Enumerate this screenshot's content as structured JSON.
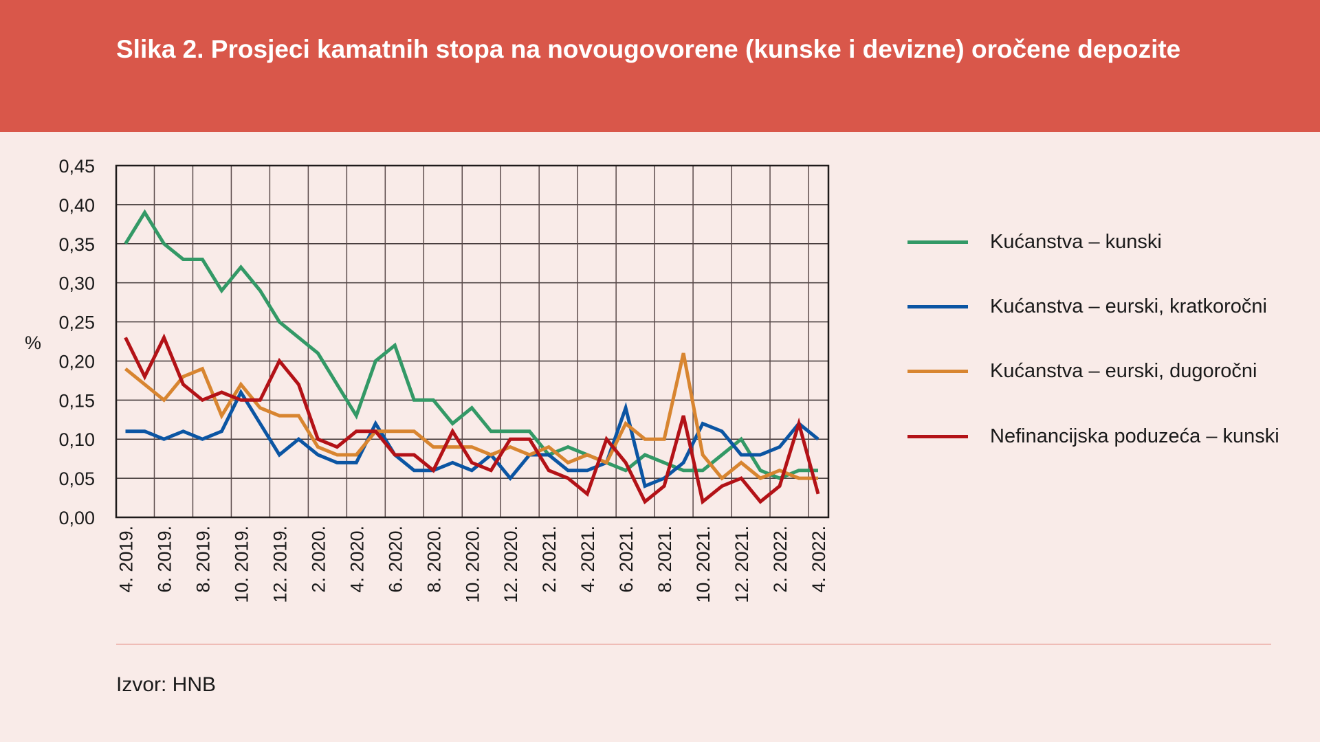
{
  "title": "Slika 2. Prosjeci kamatnih stopa na novougovorene (kunske i devizne) oročene depozite",
  "source": "Izvor: HNB",
  "chart_data": {
    "type": "line",
    "title": "Slika 2. Prosjeci kamatnih stopa na novougovorene (kunske i devizne) oročene depozite",
    "xlabel": "",
    "ylabel": "%",
    "ylim": [
      0,
      0.45
    ],
    "yticks": [
      "0,00",
      "0,05",
      "0,10",
      "0,15",
      "0,20",
      "0,25",
      "0,30",
      "0,35",
      "0,40",
      "0,45"
    ],
    "grid": true,
    "legend_position": "right",
    "x": [
      "4.2019",
      "5.2019",
      "6.2019",
      "7.2019",
      "8.2019",
      "9.2019",
      "10.2019",
      "11.2019",
      "12.2019",
      "1.2020",
      "2.2020",
      "3.2020",
      "4.2020",
      "5.2020",
      "6.2020",
      "7.2020",
      "8.2020",
      "9.2020",
      "10.2020",
      "11.2020",
      "12.2020",
      "1.2021",
      "2.2021",
      "3.2021",
      "4.2021",
      "5.2021",
      "6.2021",
      "7.2021",
      "8.2021",
      "9.2021",
      "10.2021",
      "11.2021",
      "12.2021",
      "1.2022",
      "2.2022",
      "3.2022",
      "4.2022"
    ],
    "xtick_labels": [
      "4. 2019.",
      "6. 2019.",
      "8. 2019.",
      "10. 2019.",
      "12. 2019.",
      "2. 2020.",
      "4. 2020.",
      "6. 2020.",
      "8. 2020.",
      "10. 2020.",
      "12. 2020.",
      "2. 2021.",
      "4. 2021.",
      "6. 2021.",
      "8. 2021.",
      "10. 2021.",
      "12. 2021.",
      "2. 2022.",
      "4. 2022."
    ],
    "series": [
      {
        "name": "Kućanstva – kunski",
        "color": "#339966",
        "values": [
          0.35,
          0.39,
          0.35,
          0.33,
          0.33,
          0.29,
          0.32,
          0.29,
          0.25,
          0.23,
          0.21,
          0.17,
          0.13,
          0.2,
          0.22,
          0.15,
          0.15,
          0.12,
          0.14,
          0.11,
          0.11,
          0.11,
          0.08,
          0.09,
          0.08,
          0.07,
          0.06,
          0.08,
          0.07,
          0.06,
          0.06,
          0.08,
          0.1,
          0.06,
          0.05,
          0.06,
          0.06
        ]
      },
      {
        "name": "Kućanstva – eurski, kratkoročni",
        "color": "#0b55a3",
        "values": [
          0.11,
          0.11,
          0.1,
          0.11,
          0.1,
          0.11,
          0.16,
          0.12,
          0.08,
          0.1,
          0.08,
          0.07,
          0.07,
          0.12,
          0.08,
          0.06,
          0.06,
          0.07,
          0.06,
          0.08,
          0.05,
          0.08,
          0.08,
          0.06,
          0.06,
          0.07,
          0.14,
          0.04,
          0.05,
          0.07,
          0.12,
          0.11,
          0.08,
          0.08,
          0.09,
          0.12,
          0.1
        ]
      },
      {
        "name": "Kućanstva – eurski, dugoročni",
        "color": "#d88530",
        "values": [
          0.19,
          0.17,
          0.15,
          0.18,
          0.19,
          0.13,
          0.17,
          0.14,
          0.13,
          0.13,
          0.09,
          0.08,
          0.08,
          0.11,
          0.11,
          0.11,
          0.09,
          0.09,
          0.09,
          0.08,
          0.09,
          0.08,
          0.09,
          0.07,
          0.08,
          0.07,
          0.12,
          0.1,
          0.1,
          0.21,
          0.08,
          0.05,
          0.07,
          0.05,
          0.06,
          0.05,
          0.05
        ]
      },
      {
        "name": "Nefinancijska poduzeća – kunski",
        "color": "#b31217",
        "values": [
          0.23,
          0.18,
          0.23,
          0.17,
          0.15,
          0.16,
          0.15,
          0.15,
          0.2,
          0.17,
          0.1,
          0.09,
          0.11,
          0.11,
          0.08,
          0.08,
          0.06,
          0.11,
          0.07,
          0.06,
          0.1,
          0.1,
          0.06,
          0.05,
          0.03,
          0.1,
          0.07,
          0.02,
          0.04,
          0.13,
          0.02,
          0.04,
          0.05,
          0.02,
          0.04,
          0.12,
          0.03
        ]
      }
    ]
  }
}
